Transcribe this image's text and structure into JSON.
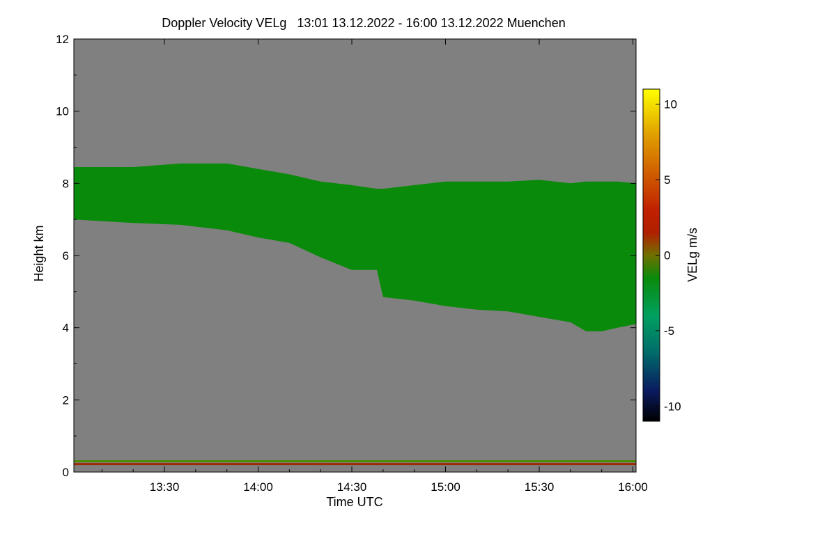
{
  "chart_data": {
    "type": "heatmap",
    "title": "Doppler Velocity VELg   13:01 13.12.2022 - 16:00 13.12.2022 Muenchen",
    "xlabel": "Time UTC",
    "ylabel": "Height km",
    "colorbar_label": "VELg m/s",
    "x_range_minutes_utc": [
      781,
      961
    ],
    "xlim": [
      "13:01",
      "16:00"
    ],
    "ylim": [
      0,
      12
    ],
    "x_ticks": [
      {
        "minute": 810,
        "label": "13:30"
      },
      {
        "minute": 840,
        "label": "14:00"
      },
      {
        "minute": 870,
        "label": "14:30"
      },
      {
        "minute": 900,
        "label": "15:00"
      },
      {
        "minute": 930,
        "label": "15:30"
      },
      {
        "minute": 960,
        "label": "16:00"
      }
    ],
    "y_ticks": [
      {
        "value": 0,
        "label": "0"
      },
      {
        "value": 2,
        "label": "2"
      },
      {
        "value": 4,
        "label": "4"
      },
      {
        "value": 6,
        "label": "6"
      },
      {
        "value": 8,
        "label": "8"
      },
      {
        "value": 10,
        "label": "10"
      },
      {
        "value": 12,
        "label": "12"
      }
    ],
    "colorbar_range": [
      -11,
      11
    ],
    "colorbar_ticks": [
      {
        "value": 10,
        "label": "10"
      },
      {
        "value": 5,
        "label": "5"
      },
      {
        "value": 0,
        "label": "0"
      },
      {
        "value": -5,
        "label": "-5"
      },
      {
        "value": -10,
        "label": "-10"
      }
    ],
    "colormap": [
      {
        "value": -11,
        "color": "#000000"
      },
      {
        "value": -9,
        "color": "#0a1a60"
      },
      {
        "value": -6.5,
        "color": "#006a6a"
      },
      {
        "value": -4,
        "color": "#00a060"
      },
      {
        "value": -1.5,
        "color": "#0a8a0a"
      },
      {
        "value": 0,
        "color": "#707000"
      },
      {
        "value": 1.5,
        "color": "#b02000"
      },
      {
        "value": 3,
        "color": "#c02000"
      },
      {
        "value": 5.5,
        "color": "#d06000"
      },
      {
        "value": 8,
        "color": "#e0a000"
      },
      {
        "value": 11,
        "color": "#ffff00"
      }
    ],
    "no_data_color": "#808080",
    "cloud_layer": {
      "mean_velocity_ms": -1,
      "time_minutes": [
        781,
        800,
        815,
        830,
        840,
        850,
        860,
        870,
        878,
        880,
        890,
        900,
        910,
        920,
        930,
        940,
        945,
        950,
        955,
        961
      ],
      "top_km": [
        8.45,
        8.45,
        8.55,
        8.55,
        8.4,
        8.25,
        8.05,
        7.95,
        7.85,
        7.85,
        7.95,
        8.05,
        8.05,
        8.05,
        8.1,
        8.0,
        8.05,
        8.05,
        8.05,
        8.0
      ],
      "base_km": [
        7.0,
        6.9,
        6.85,
        6.7,
        6.5,
        6.35,
        5.95,
        5.6,
        5.6,
        4.85,
        4.75,
        4.6,
        4.5,
        4.45,
        4.3,
        4.15,
        3.9,
        3.9,
        4.0,
        4.1
      ]
    },
    "near_ground_bands": [
      {
        "height_km": 0.3,
        "color": "#4a8a00"
      },
      {
        "height_km": 0.22,
        "color": "#a02a00"
      }
    ]
  }
}
